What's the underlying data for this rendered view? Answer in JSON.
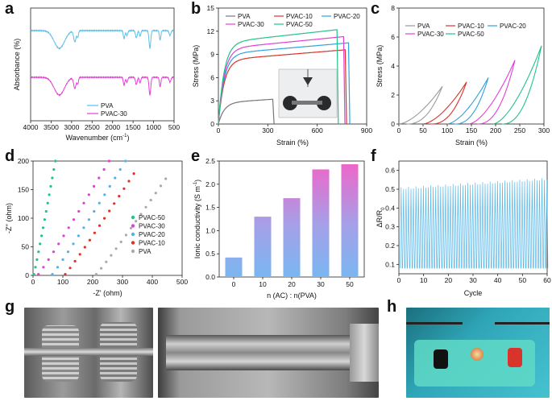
{
  "panels": {
    "a": "a",
    "b": "b",
    "c": "c",
    "d": "d",
    "e": "e",
    "f": "f",
    "g": "g",
    "h": "h"
  },
  "chart_data": [
    {
      "id": "a",
      "type": "line",
      "xlabel": "Wavenumber (cm",
      "xlabel_sup": "-1",
      "xlabel_end": ")",
      "ylabel": "Absorbance (%)",
      "xlim": [
        4000,
        500
      ],
      "xticks": [
        "4000",
        "3500",
        "3000",
        "2500",
        "2000",
        "1500",
        "1000",
        "500"
      ],
      "legend": [
        "PVA",
        "PVAC-30"
      ],
      "colors": [
        "#5bbfe8",
        "#e53fd6"
      ]
    },
    {
      "id": "b",
      "type": "line",
      "xlabel": "Strain (%)",
      "ylabel": "Stress (MPa)",
      "xlim": [
        0,
        900
      ],
      "ylim": [
        0,
        15
      ],
      "xticks": [
        "0",
        "300",
        "600",
        "900"
      ],
      "yticks": [
        "0",
        "3",
        "6",
        "9",
        "12",
        "15"
      ],
      "series": [
        {
          "name": "PVA",
          "color": "#777777",
          "end_strain": 330,
          "max_stress": 3.2
        },
        {
          "name": "PVAC-10",
          "color": "#d9342b",
          "end_strain": 770,
          "max_stress": 9.6
        },
        {
          "name": "PVAC-20",
          "color": "#2ea3dd",
          "end_strain": 790,
          "max_stress": 10.5
        },
        {
          "name": "PVAC-30",
          "color": "#e23fd6",
          "end_strain": 760,
          "max_stress": 11.3
        },
        {
          "name": "PVAC-50",
          "color": "#22c38a",
          "end_strain": 720,
          "max_stress": 12.2
        }
      ]
    },
    {
      "id": "c",
      "type": "line",
      "xlabel": "Strain (%)",
      "ylabel": "Stress (MPa)",
      "xlim": [
        0,
        300
      ],
      "ylim": [
        0,
        8
      ],
      "xticks": [
        "0",
        "50",
        "100",
        "150",
        "200",
        "250",
        "300"
      ],
      "yticks": [
        "0",
        "2",
        "4",
        "6",
        "8"
      ],
      "series": [
        {
          "name": "PVA",
          "color": "#9a9a9a",
          "start": 0,
          "end": 90,
          "peak": 2.6
        },
        {
          "name": "PVAC-10",
          "color": "#d9342b",
          "start": 50,
          "end": 140,
          "peak": 2.9
        },
        {
          "name": "PVAC-20",
          "color": "#2ea3dd",
          "start": 100,
          "end": 185,
          "peak": 3.2
        },
        {
          "name": "PVAC-30",
          "color": "#e23fd6",
          "start": 145,
          "end": 240,
          "peak": 4.4
        },
        {
          "name": "PVAC-50",
          "color": "#22c38a",
          "start": 195,
          "end": 295,
          "peak": 5.4
        }
      ]
    },
    {
      "id": "d",
      "type": "scatter",
      "xlabel": "-Z' (ohm)",
      "ylabel": "-Z'' (ohm)",
      "xlim": [
        0,
        500
      ],
      "ylim": [
        0,
        200
      ],
      "xticks": [
        "0",
        "100",
        "200",
        "300",
        "400",
        "500"
      ],
      "yticks": [
        "0",
        "50",
        "100",
        "150",
        "200"
      ],
      "series": [
        {
          "name": "PVAC-50",
          "color": "#22c38a",
          "x0": 3,
          "x1": 75,
          "y1": 198
        },
        {
          "name": "PVAC-30",
          "color": "#e23fd6",
          "x0": 18,
          "x1": 255,
          "y1": 198
        },
        {
          "name": "PVAC-20",
          "color": "#4fb3e8",
          "x0": 65,
          "x1": 310,
          "y1": 198
        },
        {
          "name": "PVAC-10",
          "color": "#d9342b",
          "x0": 108,
          "x1": 338,
          "y1": 176
        },
        {
          "name": "PVA",
          "color": "#aaaaaa",
          "x0": 212,
          "x1": 445,
          "y1": 167
        }
      ]
    },
    {
      "id": "e",
      "type": "bar",
      "xlabel": "n (AC) : n(PVA)",
      "ylabel": "Ionic conductivity (S m",
      "ylabel_sup": "-1",
      "ylabel_end": ")",
      "categories": [
        "0",
        "10",
        "20",
        "30",
        "50"
      ],
      "values": [
        0.42,
        1.3,
        1.7,
        2.32,
        2.43
      ],
      "ylim": [
        0,
        2.5
      ],
      "yticks": [
        "0.0",
        "0.5",
        "1.0",
        "1.5",
        "2.0",
        "2.5"
      ],
      "colors": [
        "#f064c8",
        "#7ab6f0"
      ]
    },
    {
      "id": "f",
      "type": "line",
      "xlabel": "Cycle",
      "ylabel": "ΔR/R",
      "ylabel_sub": "0",
      "xlim": [
        0,
        60
      ],
      "ylim": [
        0.05,
        0.65
      ],
      "xticks": [
        "0",
        "10",
        "20",
        "30",
        "40",
        "50",
        "60"
      ],
      "yticks": [
        "0.1",
        "0.2",
        "0.3",
        "0.4",
        "0.5",
        "0.6"
      ],
      "cycles": 60,
      "low": 0.08,
      "high_start": 0.5,
      "high_end": 0.55,
      "color": "#5ab8e8"
    }
  ]
}
